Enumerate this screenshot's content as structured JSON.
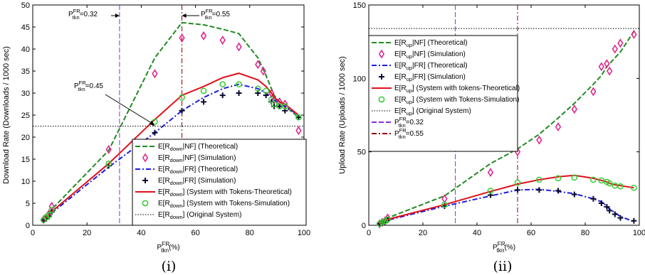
{
  "chart_data": [
    {
      "panel": "(i)",
      "type": "line",
      "xlabel": {
        "base": "P",
        "sup": "FR",
        "sub": "tkn",
        "suffix": "(%)"
      },
      "ylabel": "Download Rate (Downloads / 1000 sec)",
      "xlim": [
        0,
        100
      ],
      "ylim": [
        0,
        50
      ],
      "xticks": [
        0,
        20,
        40,
        60,
        80,
        100
      ],
      "yticks": [
        0,
        5,
        10,
        15,
        20,
        25,
        30,
        35,
        40,
        45,
        50
      ],
      "grid": false,
      "legend_position": "bottom-right",
      "vlines": [
        {
          "x": 32,
          "color": "#8a2be2",
          "style": "dashed",
          "label": {
            "base": "P",
            "sup": "FR",
            "sub": "tkn",
            "suffix": "=0.32"
          }
        },
        {
          "x": 55,
          "color": "#8b0000",
          "style": "dashdot",
          "label": {
            "base": "P",
            "sup": "FR",
            "sub": "tkn",
            "suffix": "=0.55"
          }
        }
      ],
      "annotation": {
        "label": {
          "base": "P",
          "sup": "FR",
          "sub": "tkn",
          "suffix": "=0.45"
        },
        "x": 45,
        "y": 22.5
      },
      "series": [
        {
          "legend": {
            "pre": "E[R",
            "sub": "down",
            "post": "|NF] (Theoretical)"
          },
          "style": "dashed",
          "color": "#228b22",
          "x": [
            4,
            5,
            6,
            7,
            28,
            45,
            55,
            63,
            70,
            76,
            83,
            86,
            88,
            89,
            91,
            93,
            98
          ],
          "y": [
            1.5,
            2.2,
            2.8,
            3.6,
            17,
            38,
            46,
            45.5,
            44.5,
            43.5,
            38,
            34,
            31,
            29.5,
            28,
            27,
            24.5
          ]
        },
        {
          "legend": {
            "pre": "E[R",
            "sub": "down",
            "post": "|NF] (Simulation)"
          },
          "style": "diamond",
          "color": "#e0288c",
          "x": [
            4,
            5,
            6,
            7,
            28,
            45,
            55,
            63,
            70,
            76,
            83,
            85,
            88,
            89,
            91,
            93,
            98
          ],
          "y": [
            1.3,
            1.8,
            2.6,
            4.3,
            17.2,
            34.4,
            42.5,
            43,
            42,
            40.5,
            36.5,
            35,
            30,
            28.5,
            28,
            27.5,
            21.5
          ]
        },
        {
          "legend": {
            "pre": "E[R",
            "sub": "down",
            "post": "|FR] (Theoretical)"
          },
          "style": "dashdot",
          "color": "#1a1ae6",
          "x": [
            4,
            5,
            6,
            7,
            28,
            45,
            55,
            63,
            70,
            76,
            83,
            86,
            88,
            89,
            91,
            93,
            98
          ],
          "y": [
            1.2,
            1.6,
            2.1,
            2.8,
            13.2,
            21,
            26,
            29,
            31,
            32,
            31,
            30,
            29,
            28.5,
            27.5,
            27,
            25
          ]
        },
        {
          "legend": {
            "pre": "E[R",
            "sub": "down",
            "post": "|FR] (Simulation)"
          },
          "style": "plus",
          "color": "#0a0a30",
          "x": [
            4,
            5,
            6,
            7,
            28,
            45,
            55,
            63,
            70,
            76,
            83,
            86,
            88,
            89,
            91,
            93,
            98
          ],
          "y": [
            1.2,
            1.5,
            2,
            3,
            13.5,
            21,
            26,
            28,
            29.5,
            30,
            30,
            29.5,
            28,
            27,
            27,
            26,
            24.5
          ]
        },
        {
          "legend": {
            "pre": "E[R",
            "sub": "down",
            "post": "] (System with Tokens-Theoretical)"
          },
          "style": "solid",
          "color": "#e0101a",
          "x": [
            4,
            5,
            6,
            7,
            28,
            45,
            55,
            63,
            70,
            76,
            83,
            86,
            88,
            89,
            91,
            93,
            98
          ],
          "y": [
            1.3,
            1.8,
            2.3,
            3.1,
            14,
            24,
            29.5,
            31.5,
            33.5,
            34.5,
            33,
            31.5,
            30,
            29,
            28,
            27.5,
            25
          ]
        },
        {
          "legend": {
            "pre": "E[R",
            "sub": "down",
            "post": "] (System with Tokens-Simulation)"
          },
          "style": "circle",
          "color": "#33cc33",
          "x": [
            4,
            5,
            6,
            7,
            28,
            45,
            55,
            63,
            70,
            76,
            83,
            86,
            88,
            89,
            91,
            93,
            98
          ],
          "y": [
            1.2,
            1.8,
            2.3,
            3.5,
            14,
            23.5,
            29,
            30.5,
            32,
            32,
            31,
            30.5,
            28.5,
            27.5,
            27,
            27,
            24.5
          ]
        },
        {
          "legend": {
            "pre": "E[R",
            "sub": "down",
            "post": "] (Original System)"
          },
          "style": "dotted",
          "color": "#000000",
          "x": [
            0,
            100
          ],
          "y": [
            22.5,
            22.5
          ]
        }
      ]
    },
    {
      "panel": "(ii)",
      "type": "line",
      "xlabel": {
        "base": "P",
        "sup": "FR",
        "sub": "tkn",
        "suffix": "(%)"
      },
      "ylabel": "Upload Rate (Uploads / 1000 sec)",
      "xlim": [
        0,
        100
      ],
      "ylim": [
        0,
        150
      ],
      "xticks": [
        0,
        20,
        40,
        60,
        80,
        100
      ],
      "yticks": [
        0,
        50,
        100,
        150
      ],
      "grid": false,
      "legend_position": "top-left",
      "vlines": [
        {
          "x": 32,
          "color": "#8a2be2",
          "style": "dashed"
        },
        {
          "x": 55,
          "color": "#8b0000",
          "style": "dashdot"
        }
      ],
      "series": [
        {
          "legend": {
            "pre": "E[R",
            "sub": "up",
            "post": "|NF] (Theoretical)"
          },
          "style": "dashed",
          "color": "#228b22",
          "x": [
            4,
            5,
            6,
            7,
            28,
            45,
            55,
            63,
            70,
            76,
            83,
            86,
            88,
            89,
            91,
            93,
            98
          ],
          "y": [
            1.5,
            2.5,
            3.5,
            5,
            20,
            42,
            52,
            62,
            73,
            83,
            96,
            102,
            108,
            110,
            114,
            118,
            132
          ]
        },
        {
          "legend": {
            "pre": "E[R",
            "sub": "up",
            "post": "|NF] (Simulation)"
          },
          "style": "diamond",
          "color": "#e0288c",
          "x": [
            4,
            5,
            6,
            7,
            28,
            45,
            55,
            63,
            70,
            76,
            83,
            86,
            88,
            89,
            91,
            93,
            98
          ],
          "y": [
            1,
            2,
            3,
            5,
            18,
            36,
            50,
            58,
            67,
            79,
            91,
            108,
            110,
            105,
            120,
            124,
            130
          ]
        },
        {
          "legend": {
            "pre": "E[R",
            "sub": "up",
            "post": "|FR] (Theoretical)"
          },
          "style": "dashdot",
          "color": "#1a1ae6",
          "x": [
            4,
            5,
            6,
            7,
            28,
            45,
            55,
            63,
            70,
            76,
            83,
            86,
            88,
            89,
            91,
            93,
            98
          ],
          "y": [
            1,
            1.8,
            2.5,
            3.5,
            13,
            20,
            24,
            24.5,
            23,
            21.5,
            18,
            16,
            13,
            11,
            8.5,
            6,
            2.5
          ]
        },
        {
          "legend": {
            "pre": "E[R",
            "sub": "up",
            "post": "|FR] (Simulation)"
          },
          "style": "plus",
          "color": "#0a0a30",
          "x": [
            4,
            5,
            6,
            7,
            28,
            45,
            55,
            63,
            70,
            76,
            83,
            86,
            88,
            89,
            91,
            93,
            98
          ],
          "y": [
            1,
            1.6,
            2.3,
            3.5,
            13,
            20.5,
            24,
            24,
            23.5,
            21,
            18,
            15,
            12.5,
            10,
            7.5,
            5,
            3
          ]
        },
        {
          "legend": {
            "pre": "E[R",
            "sub": "up",
            "post": "] (System with tokens-Theoretical)"
          },
          "style": "solid",
          "color": "#e0101a",
          "x": [
            4,
            5,
            6,
            7,
            28,
            45,
            55,
            63,
            70,
            76,
            83,
            86,
            88,
            89,
            91,
            93,
            98
          ],
          "y": [
            1.2,
            2,
            2.8,
            4,
            14,
            23,
            28,
            31,
            33,
            34,
            32,
            30.5,
            29.5,
            28.5,
            27.5,
            27,
            25.5
          ]
        },
        {
          "legend": {
            "pre": "E[R",
            "sub": "up",
            "post": "] (System with Tokens-Simulation)"
          },
          "style": "circle",
          "color": "#33cc33",
          "x": [
            4,
            5,
            6,
            7,
            28,
            45,
            55,
            63,
            70,
            76,
            83,
            86,
            88,
            89,
            91,
            93,
            98
          ],
          "y": [
            1,
            2,
            2.8,
            4,
            14,
            23.5,
            29,
            31,
            32,
            32.5,
            31,
            30.5,
            29.5,
            28.5,
            27,
            26.5,
            25.5
          ]
        },
        {
          "legend": {
            "pre": "E[R",
            "sub": "up",
            "post": "] (Original System)"
          },
          "style": "dotted",
          "color": "#000000",
          "x": [
            0,
            100
          ],
          "y": [
            134,
            134
          ]
        }
      ],
      "legend_extra": [
        {
          "label": {
            "base": "P",
            "sup": "FR",
            "sub": "tkn",
            "suffix": "=0.32"
          },
          "style": "dashed",
          "color": "#8a2be2"
        },
        {
          "label": {
            "base": "P",
            "sup": "FR",
            "sub": "tkn",
            "suffix": "=0.55"
          },
          "style": "dashdot",
          "color": "#8b0000"
        }
      ]
    }
  ]
}
